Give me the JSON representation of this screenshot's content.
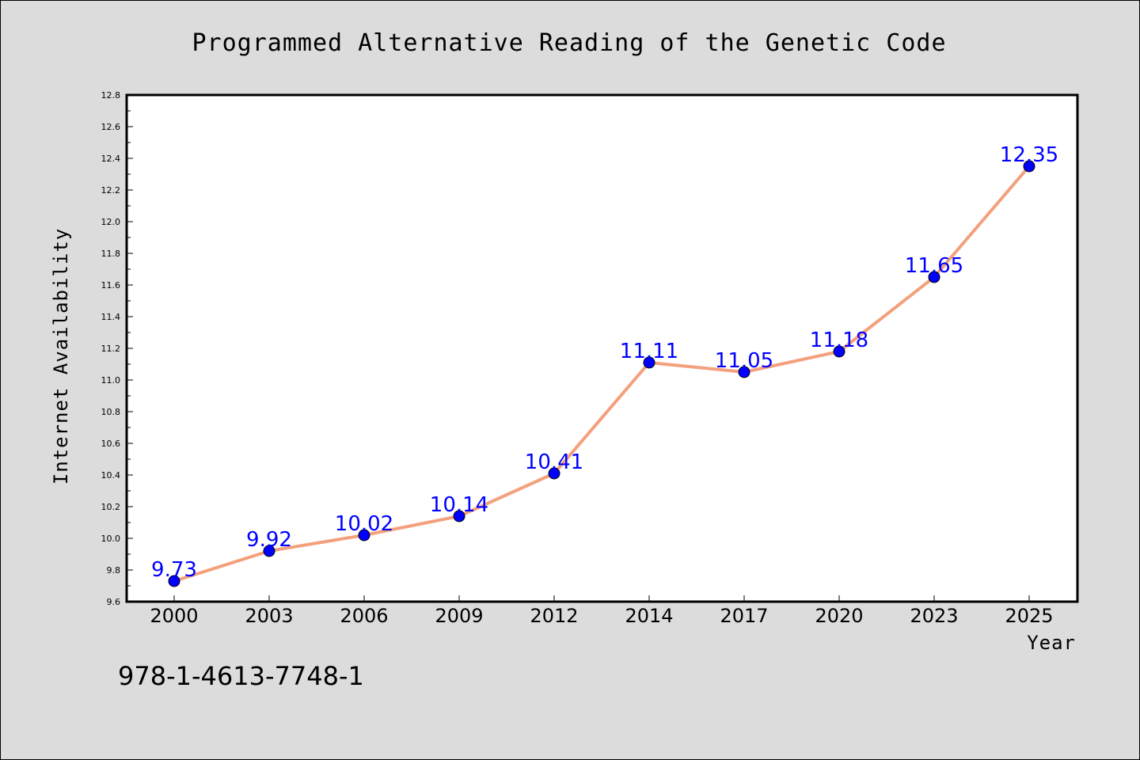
{
  "chart_data": {
    "type": "line",
    "title": "Programmed Alternative Reading of the Genetic Code",
    "xlabel": "Year",
    "ylabel": "Internet Availability",
    "categories": [
      "2000",
      "2003",
      "2006",
      "2009",
      "2012",
      "2014",
      "2017",
      "2020",
      "2023",
      "2025"
    ],
    "series": [
      {
        "values": [
          9.73,
          9.92,
          10.02,
          10.14,
          10.41,
          11.11,
          11.05,
          11.18,
          11.65,
          12.35
        ],
        "data_labels": [
          "9.73",
          "9.92",
          "10.02",
          "10.14",
          "10.41",
          "11.11",
          "11.05",
          "11.18",
          "11.65",
          "12.35"
        ],
        "line_color": "#f4a07c",
        "marker_color": "#0000ff"
      }
    ],
    "ylim": [
      9.6,
      12.8
    ],
    "yticks": [
      9.6,
      9.8,
      10.0,
      10.2,
      10.4,
      10.6,
      10.8,
      11.0,
      11.2,
      11.4,
      11.6,
      11.8,
      12.0,
      12.2,
      12.4,
      12.6,
      12.8
    ],
    "ytick_labels": [
      "9.6",
      "9.8",
      "10.0",
      "10.2",
      "10.4",
      "10.6",
      "10.8",
      "11.0",
      "11.2",
      "11.4",
      "11.6",
      "11.8",
      "12.0",
      "12.2",
      "12.4",
      "12.6",
      "12.8"
    ],
    "grid": false,
    "legend": "none",
    "label_color": "#0000ff",
    "background_color": "#dcdcdc",
    "plot_background_color": "#ffffff"
  },
  "footer": {
    "isbn": "978-1-4613-7748-1"
  }
}
